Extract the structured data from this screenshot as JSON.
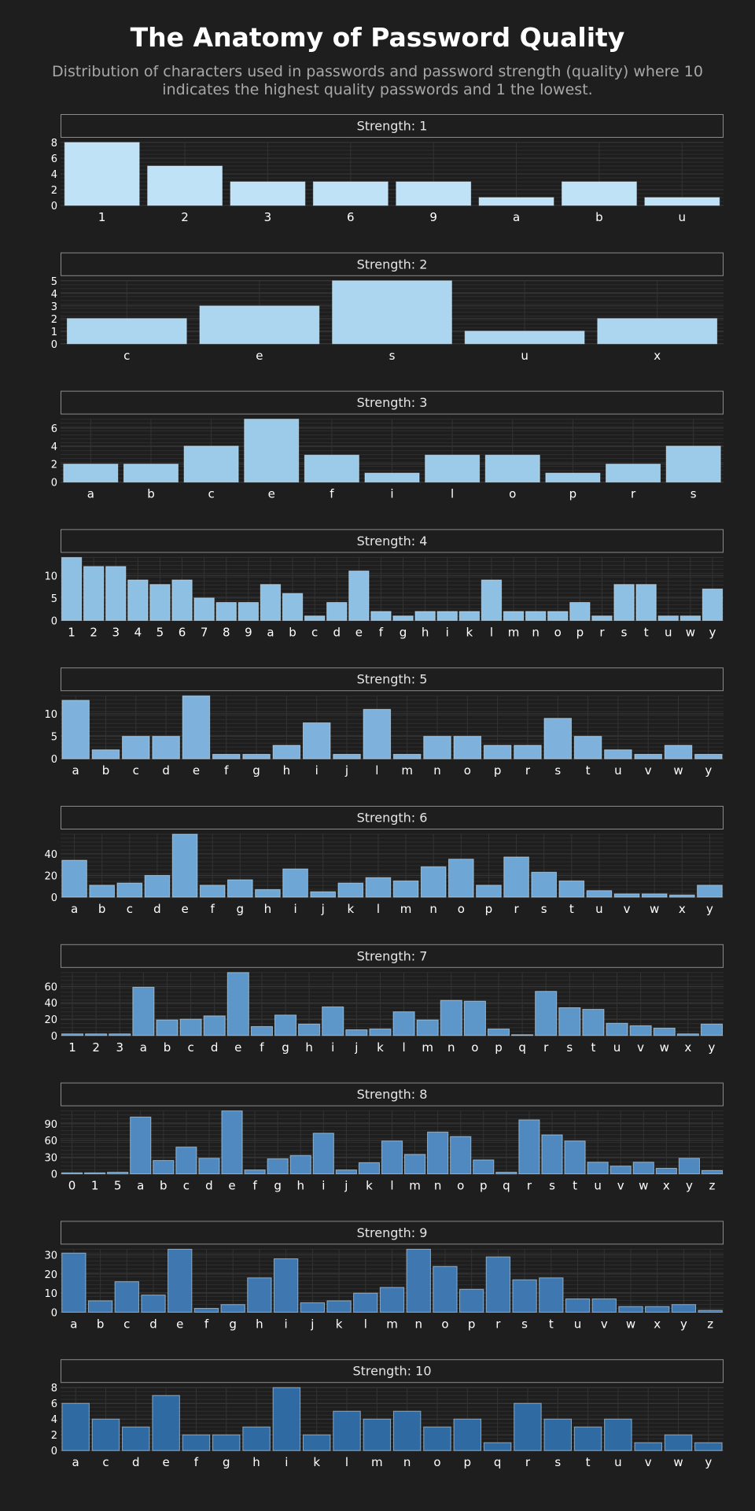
{
  "header": {
    "title": "The Anatomy of Password Quality",
    "subtitle": "Distribution of characters used in passwords and password strength (quality) where 10 indicates the highest quality passwords and 1 the lowest."
  },
  "colors": {
    "background": "#1e1e1e",
    "grid": "#3a3a3a",
    "strip_border": "#8a8a8a",
    "text": "#ffffff",
    "bar_scale": [
      "#bfe2f6",
      "#acd6f0",
      "#9ccbea",
      "#8ec0e4",
      "#7eb2dc",
      "#6ea6d5",
      "#5d97ca",
      "#4f89bf",
      "#3f78b0",
      "#306aa2"
    ]
  },
  "chart_data": [
    {
      "type": "bar",
      "title": "Strength: 1",
      "categories": [
        "1",
        "2",
        "3",
        "6",
        "9",
        "a",
        "b",
        "u"
      ],
      "values": [
        8,
        5,
        3,
        3,
        3,
        1,
        3,
        1
      ],
      "yticks": [
        0,
        2,
        4,
        6,
        8
      ],
      "ylim": [
        0,
        8
      ],
      "grid": true
    },
    {
      "type": "bar",
      "title": "Strength: 2",
      "categories": [
        "c",
        "e",
        "s",
        "u",
        "x"
      ],
      "values": [
        2,
        3,
        5,
        1,
        2
      ],
      "yticks": [
        0,
        1,
        2,
        3,
        4,
        5
      ],
      "ylim": [
        0,
        5
      ],
      "grid": true
    },
    {
      "type": "bar",
      "title": "Strength: 3",
      "categories": [
        "a",
        "b",
        "c",
        "e",
        "f",
        "i",
        "l",
        "o",
        "p",
        "r",
        "s"
      ],
      "values": [
        2,
        2,
        4,
        7,
        3,
        1,
        3,
        3,
        1,
        2,
        4
      ],
      "yticks": [
        0,
        2,
        4,
        6
      ],
      "ylim": [
        0,
        7
      ],
      "grid": true
    },
    {
      "type": "bar",
      "title": "Strength: 4",
      "categories": [
        "1",
        "2",
        "3",
        "4",
        "5",
        "6",
        "7",
        "8",
        "9",
        "a",
        "b",
        "c",
        "d",
        "e",
        "f",
        "g",
        "h",
        "i",
        "k",
        "l",
        "m",
        "n",
        "o",
        "p",
        "r",
        "s",
        "t",
        "u",
        "w",
        "y"
      ],
      "values": [
        14,
        12,
        12,
        9,
        8,
        9,
        5,
        4,
        4,
        8,
        6,
        1,
        4,
        11,
        2,
        1,
        2,
        2,
        2,
        9,
        2,
        2,
        2,
        4,
        1,
        8,
        8,
        1,
        1,
        7
      ],
      "yticks": [
        0,
        5,
        10
      ],
      "ylim": [
        0,
        14
      ],
      "grid": true
    },
    {
      "type": "bar",
      "title": "Strength: 5",
      "categories": [
        "a",
        "b",
        "c",
        "d",
        "e",
        "f",
        "g",
        "h",
        "i",
        "j",
        "l",
        "m",
        "n",
        "o",
        "p",
        "r",
        "s",
        "t",
        "u",
        "v",
        "w",
        "y"
      ],
      "values": [
        13,
        2,
        5,
        5,
        14,
        1,
        1,
        3,
        8,
        1,
        11,
        1,
        5,
        5,
        3,
        3,
        9,
        5,
        2,
        1,
        3,
        1
      ],
      "yticks": [
        0,
        5,
        10
      ],
      "ylim": [
        0,
        14
      ],
      "grid": true
    },
    {
      "type": "bar",
      "title": "Strength: 6",
      "categories": [
        "a",
        "b",
        "c",
        "d",
        "e",
        "f",
        "g",
        "h",
        "i",
        "j",
        "k",
        "l",
        "m",
        "n",
        "o",
        "p",
        "r",
        "s",
        "t",
        "u",
        "v",
        "w",
        "x",
        "y"
      ],
      "values": [
        34,
        11,
        13,
        20,
        58,
        11,
        16,
        7,
        26,
        5,
        13,
        18,
        15,
        28,
        35,
        11,
        37,
        23,
        15,
        6,
        3,
        3,
        2,
        11
      ],
      "yticks": [
        0,
        20,
        40
      ],
      "ylim": [
        0,
        58
      ],
      "grid": true
    },
    {
      "type": "bar",
      "title": "Strength: 7",
      "categories": [
        "1",
        "2",
        "3",
        "a",
        "b",
        "c",
        "d",
        "e",
        "f",
        "g",
        "h",
        "i",
        "j",
        "k",
        "l",
        "m",
        "n",
        "o",
        "p",
        "q",
        "r",
        "s",
        "t",
        "u",
        "v",
        "w",
        "x",
        "y"
      ],
      "values": [
        2,
        2,
        2,
        59,
        19,
        20,
        24,
        77,
        11,
        25,
        14,
        35,
        7,
        8,
        29,
        19,
        43,
        42,
        8,
        1,
        54,
        34,
        32,
        15,
        12,
        9,
        2,
        14
      ],
      "yticks": [
        0,
        20,
        40,
        60
      ],
      "ylim": [
        0,
        77
      ],
      "grid": true
    },
    {
      "type": "bar",
      "title": "Strength: 8",
      "categories": [
        "0",
        "1",
        "5",
        "a",
        "b",
        "c",
        "d",
        "e",
        "f",
        "g",
        "h",
        "i",
        "j",
        "k",
        "l",
        "m",
        "n",
        "o",
        "p",
        "q",
        "r",
        "s",
        "t",
        "u",
        "v",
        "w",
        "x",
        "y",
        "z"
      ],
      "values": [
        2,
        2,
        3,
        102,
        24,
        48,
        28,
        113,
        7,
        27,
        33,
        73,
        7,
        20,
        59,
        35,
        75,
        67,
        25,
        3,
        97,
        70,
        59,
        21,
        14,
        21,
        10,
        28,
        6
      ],
      "yticks": [
        0,
        30,
        60,
        90
      ],
      "ylim": [
        0,
        113
      ],
      "grid": true
    },
    {
      "type": "bar",
      "title": "Strength: 9",
      "categories": [
        "a",
        "b",
        "c",
        "d",
        "e",
        "f",
        "g",
        "h",
        "i",
        "j",
        "k",
        "l",
        "m",
        "n",
        "o",
        "p",
        "r",
        "s",
        "t",
        "u",
        "v",
        "w",
        "x",
        "y",
        "z"
      ],
      "values": [
        31,
        6,
        16,
        9,
        33,
        2,
        4,
        18,
        28,
        5,
        6,
        10,
        13,
        33,
        24,
        12,
        29,
        17,
        18,
        7,
        7,
        3,
        3,
        4,
        1
      ],
      "yticks": [
        0,
        10,
        20,
        30
      ],
      "ylim": [
        0,
        33
      ],
      "grid": true
    },
    {
      "type": "bar",
      "title": "Strength: 10",
      "categories": [
        "a",
        "c",
        "d",
        "e",
        "f",
        "g",
        "h",
        "i",
        "k",
        "l",
        "m",
        "n",
        "o",
        "p",
        "q",
        "r",
        "s",
        "t",
        "u",
        "v",
        "w",
        "y"
      ],
      "values": [
        6,
        4,
        3,
        7,
        2,
        2,
        3,
        8,
        2,
        5,
        4,
        5,
        3,
        4,
        1,
        6,
        4,
        3,
        4,
        1,
        2,
        1
      ],
      "yticks": [
        0,
        2,
        4,
        6,
        8
      ],
      "ylim": [
        0,
        8
      ],
      "grid": true
    }
  ]
}
